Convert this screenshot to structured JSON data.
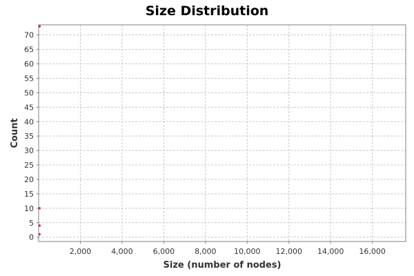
{
  "chart_data": {
    "type": "scatter",
    "title": "Size Distribution",
    "xlabel": "Size (number of nodes)",
    "ylabel": "Count",
    "xlim": [
      0,
      17600
    ],
    "ylim": [
      -1.5,
      73.5
    ],
    "xticks": [
      2000,
      4000,
      6000,
      8000,
      10000,
      12000,
      14000,
      16000
    ],
    "xtick_labels": [
      "2,000",
      "4,000",
      "6,000",
      "8,000",
      "10,000",
      "12,000",
      "14,000",
      "16,000"
    ],
    "yticks": [
      0,
      5,
      10,
      15,
      20,
      25,
      30,
      35,
      40,
      45,
      50,
      55,
      60,
      65,
      70
    ],
    "ytick_labels": [
      "0",
      "5",
      "10",
      "15",
      "20",
      "25",
      "30",
      "35",
      "40",
      "45",
      "50",
      "55",
      "60",
      "65",
      "70"
    ],
    "grid": true,
    "legend": "none",
    "marker_color": "#c0394b",
    "points": [
      {
        "x": 40,
        "y": 73
      },
      {
        "x": 40,
        "y": 10
      },
      {
        "x": 40,
        "y": 4
      },
      {
        "x": 40,
        "y": 1
      }
    ]
  }
}
